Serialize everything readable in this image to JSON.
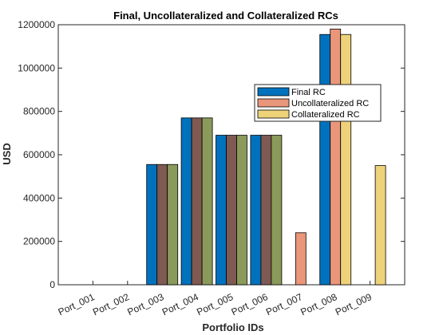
{
  "chart_data": {
    "type": "bar",
    "title": "Final, Uncollateralized and Collateralized RCs",
    "xlabel": "Portfolio IDs",
    "ylabel": "USD",
    "ylim": [
      0,
      1200000
    ],
    "yticks": [
      0,
      200000,
      400000,
      600000,
      800000,
      1000000,
      1200000
    ],
    "ytick_labels": [
      "0",
      "200000",
      "400000",
      "600000",
      "800000",
      "1000000",
      "1200000"
    ],
    "categories": [
      "Port_001",
      "Port_002",
      "Port_003",
      "Port_004",
      "Port_005",
      "Port_006",
      "Port_007",
      "Port_008",
      "Port_009"
    ],
    "series": [
      {
        "name": "Final RC",
        "color": "#0072BD",
        "values": [
          0,
          0,
          555000,
          770000,
          690000,
          690000,
          0,
          1155000,
          0
        ]
      },
      {
        "name": "Uncollateralized RC",
        "color": "#E9967A",
        "values": [
          0,
          0,
          555000,
          770000,
          690000,
          690000,
          240000,
          1180000,
          0
        ]
      },
      {
        "name": "Collateralized RC",
        "color": "#EDD27A",
        "values": [
          0,
          0,
          555000,
          770000,
          690000,
          690000,
          0,
          1155000,
          550000
        ]
      }
    ],
    "overlap_color": "#7E5A52",
    "overlap_color_2": "#8A9A5B",
    "legend_position": "upper-right-inside",
    "grid": false
  }
}
